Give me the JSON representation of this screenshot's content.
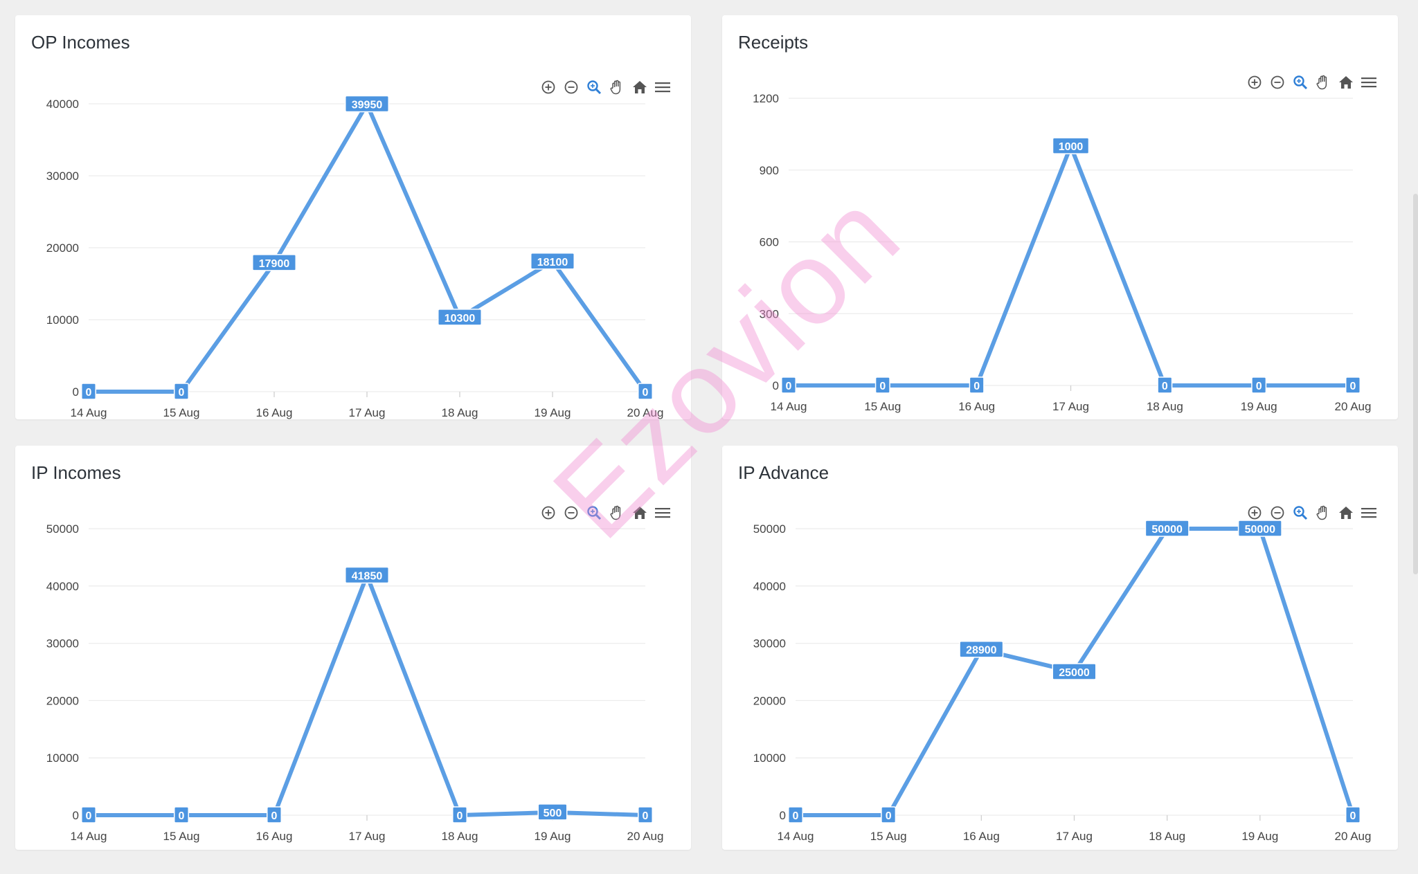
{
  "watermark": "Ezovion",
  "colors": {
    "line": "#5b9ee4",
    "label_bg": "#4b94e0",
    "grid": "#ececec",
    "axis_text": "#444444"
  },
  "toolbar_icons": [
    "zoom-in-icon",
    "zoom-out-icon",
    "selection-zoom-icon",
    "pan-hand-icon",
    "reset-home-icon",
    "menu-icon"
  ],
  "chart_data": [
    {
      "type": "line",
      "title": "OP Incomes",
      "categories": [
        "14 Aug",
        "15 Aug",
        "16 Aug",
        "17 Aug",
        "18 Aug",
        "19 Aug",
        "20 Aug"
      ],
      "values": [
        0,
        0,
        17900,
        39950,
        10300,
        18100,
        0
      ],
      "yticks": [
        0,
        10000,
        20000,
        30000,
        40000
      ],
      "ylim": [
        0,
        40000
      ],
      "grid": true
    },
    {
      "type": "line",
      "title": "Receipts",
      "categories": [
        "14 Aug",
        "15 Aug",
        "16 Aug",
        "17 Aug",
        "18 Aug",
        "19 Aug",
        "20 Aug"
      ],
      "values": [
        0,
        0,
        0,
        1000,
        0,
        0,
        0
      ],
      "yticks": [
        0,
        300,
        600,
        900,
        1200
      ],
      "ylim": [
        0,
        1200
      ],
      "grid": true
    },
    {
      "type": "line",
      "title": "IP Incomes",
      "categories": [
        "14 Aug",
        "15 Aug",
        "16 Aug",
        "17 Aug",
        "18 Aug",
        "19 Aug",
        "20 Aug"
      ],
      "values": [
        0,
        0,
        0,
        41850,
        0,
        500,
        0
      ],
      "yticks": [
        0,
        10000,
        20000,
        30000,
        40000,
        50000
      ],
      "ylim": [
        0,
        50000
      ],
      "grid": true
    },
    {
      "type": "line",
      "title": "IP Advance",
      "categories": [
        "14 Aug",
        "15 Aug",
        "16 Aug",
        "17 Aug",
        "18 Aug",
        "19 Aug",
        "20 Aug"
      ],
      "values": [
        0,
        0,
        28900,
        25000,
        50000,
        50000,
        0
      ],
      "yticks": [
        0,
        10000,
        20000,
        30000,
        40000,
        50000
      ],
      "ylim": [
        0,
        50000
      ],
      "grid": true
    }
  ]
}
